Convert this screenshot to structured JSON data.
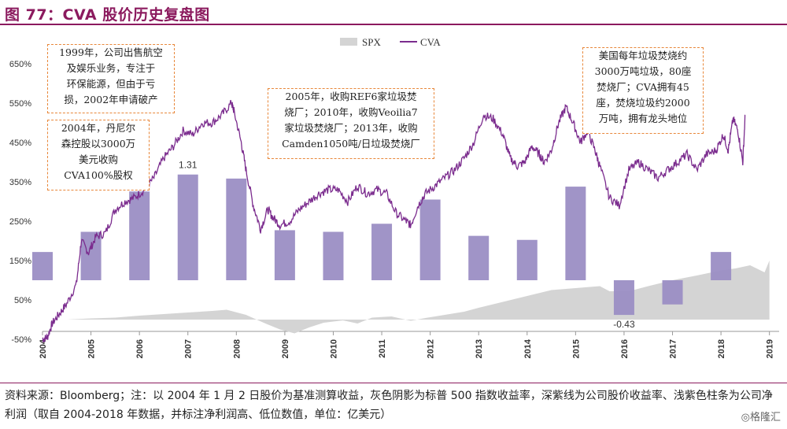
{
  "header": {
    "title": "图 77：CVA 股价历史复盘图"
  },
  "chart_data": {
    "type": "line",
    "legend": [
      "SPX",
      "CVA"
    ],
    "legend_placement": "top-center",
    "y_ticks": [
      "650%",
      "550%",
      "450%",
      "350%",
      "250%",
      "150%",
      "50%",
      "-50%"
    ],
    "y_tick_values": [
      650,
      550,
      450,
      350,
      250,
      150,
      50,
      -50
    ],
    "ylim": [
      -50,
      650
    ],
    "x_ticks": [
      "2004",
      "2005",
      "2006",
      "2007",
      "2008",
      "2009",
      "2010",
      "2011",
      "2012",
      "2013",
      "2014",
      "2015",
      "2016",
      "2017",
      "2018",
      "2019"
    ],
    "xlim": [
      2004,
      2019.2
    ],
    "cva_series": {
      "name": "CVA",
      "color": "#7B2C8E",
      "x": [
        2004.0,
        2004.1,
        2004.2,
        2004.35,
        2004.5,
        2004.7,
        2004.8,
        2004.95,
        2005.1,
        2005.3,
        2005.5,
        2005.7,
        2005.9,
        2006.1,
        2006.3,
        2006.5,
        2006.7,
        2006.9,
        2007.1,
        2007.3,
        2007.5,
        2007.7,
        2007.9,
        2007.95,
        2008.1,
        2008.2,
        2008.35,
        2008.5,
        2008.65,
        2008.75,
        2008.9,
        2009.1,
        2009.3,
        2009.5,
        2009.7,
        2009.9,
        2010.1,
        2010.3,
        2010.5,
        2010.7,
        2010.9,
        2011.1,
        2011.3,
        2011.5,
        2011.6,
        2011.75,
        2011.9,
        2012.1,
        2012.3,
        2012.5,
        2012.7,
        2012.9,
        2013.1,
        2013.3,
        2013.5,
        2013.65,
        2013.8,
        2013.95,
        2014.1,
        2014.25,
        2014.35,
        2014.5,
        2014.65,
        2014.8,
        2014.95,
        2015.1,
        2015.25,
        2015.4,
        2015.5,
        2015.7,
        2015.9,
        2016.1,
        2016.3,
        2016.5,
        2016.7,
        2016.9,
        2017.1,
        2017.3,
        2017.5,
        2017.7,
        2017.9,
        2018.05,
        2018.15,
        2018.25,
        2018.35,
        2018.45,
        2018.5
      ],
      "y": [
        -50,
        -45,
        -10,
        15,
        40,
        90,
        200,
        170,
        210,
        220,
        280,
        300,
        310,
        330,
        360,
        410,
        440,
        480,
        470,
        500,
        500,
        520,
        550,
        530,
        450,
        380,
        290,
        230,
        280,
        260,
        240,
        250,
        280,
        300,
        320,
        330,
        330,
        300,
        340,
        320,
        330,
        320,
        270,
        250,
        240,
        290,
        320,
        340,
        360,
        380,
        410,
        450,
        520,
        510,
        470,
        410,
        390,
        400,
        440,
        420,
        400,
        430,
        500,
        540,
        500,
        450,
        480,
        430,
        390,
        310,
        290,
        380,
        400,
        380,
        360,
        380,
        400,
        420,
        380,
        420,
        430,
        470,
        430,
        510,
        480,
        400,
        520
      ]
    },
    "spx_series": {
      "name": "SPX",
      "color": "#D4D4D4",
      "x": [
        2004.0,
        2004.5,
        2005.0,
        2005.5,
        2006.0,
        2006.5,
        2007.0,
        2007.5,
        2007.8,
        2008.2,
        2008.6,
        2008.9,
        2009.2,
        2009.5,
        2009.8,
        2010.2,
        2010.5,
        2010.8,
        2011.2,
        2011.6,
        2011.9,
        2012.3,
        2012.7,
        2013.0,
        2013.5,
        2014.0,
        2014.5,
        2015.0,
        2015.5,
        2015.7,
        2016.1,
        2016.5,
        2017.0,
        2017.5,
        2018.0,
        2018.3,
        2018.6,
        2018.9,
        2019.0
      ],
      "y": [
        0,
        0,
        3,
        5,
        10,
        14,
        18,
        22,
        25,
        12,
        -10,
        -25,
        -35,
        -20,
        -8,
        -2,
        -10,
        5,
        8,
        -3,
        4,
        12,
        20,
        30,
        45,
        60,
        75,
        80,
        85,
        72,
        72,
        85,
        100,
        112,
        125,
        130,
        138,
        120,
        150
      ]
    },
    "profit_bars": {
      "name": "CVA净利润",
      "unit": "亿美元",
      "color": "#9B8EC4",
      "x": [
        2004,
        2005,
        2006,
        2007,
        2008,
        2009,
        2010,
        2011,
        2012,
        2013,
        2014,
        2015,
        2016,
        2017,
        2018
      ],
      "values": [
        0.35,
        0.6,
        1.1,
        1.31,
        1.26,
        0.62,
        0.6,
        0.7,
        1.0,
        0.55,
        0.5,
        1.16,
        -0.43,
        -0.3,
        0.35
      ],
      "labeled": [
        {
          "x": 2007,
          "text": "1.31"
        },
        {
          "x": 2016,
          "text": "-0.43"
        }
      ]
    }
  },
  "annotations": [
    {
      "id": "a1",
      "lines": [
        "1999年，公司出售航空",
        "及娱乐业务，专注于",
        "环保能源，但由于亏",
        "损，2002年申请破产"
      ]
    },
    {
      "id": "a2",
      "lines": [
        "2004年，丹尼尔",
        "森控股以3000万",
        "美元收购",
        "CVA100%股权"
      ]
    },
    {
      "id": "a3",
      "lines": [
        "2005年，收购REF6家垃圾焚",
        "烧厂；2010年，收购Veoilia7",
        "家垃圾焚烧厂；2013年，收购",
        "Camden1050吨/日垃圾焚烧厂"
      ]
    },
    {
      "id": "a4",
      "lines": [
        "美国每年垃圾焚烧约",
        "3000万吨垃圾，80座",
        "焚烧厂；CVA拥有45",
        "座，焚烧垃圾约2000",
        "万吨，拥有龙头地位"
      ]
    }
  ],
  "source": {
    "text": "资料来源：Bloomberg；注：以 2004 年 1 月 2 日股价为基准测算收益，灰色阴影为标普 500 指数收益率，深紫线为公司股价收益率、浅紫色柱条为公司净利润（取自 2004-2018 年数据，并标注净利润高、低位数值，单位：亿美元）",
    "watermark": "◎格隆汇"
  }
}
